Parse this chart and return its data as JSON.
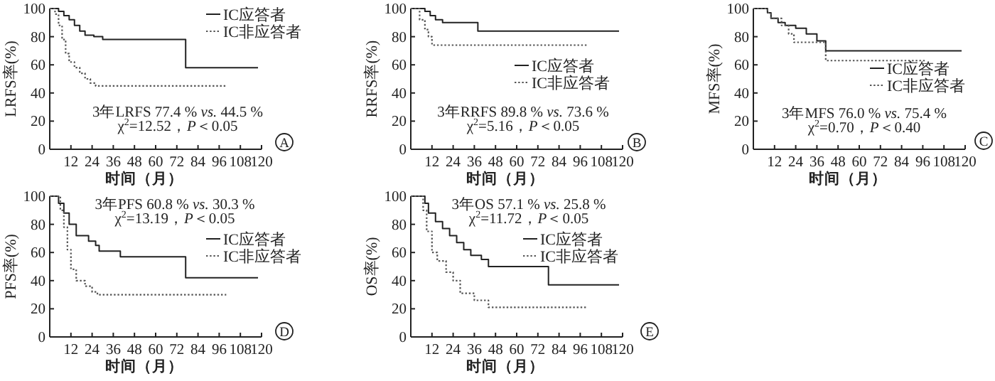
{
  "chart_data": [
    {
      "type": "step",
      "ylabel": "LRFS率(%)",
      "xlabel": "时间（月）",
      "xlim": [
        0,
        120
      ],
      "ylim": [
        0,
        100
      ],
      "xticks": [
        12,
        24,
        36,
        48,
        60,
        72,
        84,
        96,
        108,
        120
      ],
      "yticks": [
        0,
        20,
        40,
        60,
        80,
        100
      ],
      "legend": "top right",
      "annotations": [
        "3年LRFS 77.4 % *vs.* 44.5 %",
        "χ$^{2}$=12.52，*P*＜0.05",
        "A"
      ],
      "series": [
        {
          "name": "IC应答者",
          "color": "#222222",
          "line_style": "solid",
          "x": [
            0,
            5,
            8,
            11,
            14,
            17,
            20,
            25,
            30,
            77,
            118
          ],
          "values": [
            100,
            98,
            95,
            92,
            88,
            84,
            81,
            80,
            78,
            58,
            58
          ]
        },
        {
          "name": "IC非应答者",
          "color": "#555555",
          "line_style": "dotted",
          "x": [
            0,
            3,
            5,
            7,
            9,
            11,
            14,
            17,
            20,
            23,
            26,
            100
          ],
          "values": [
            100,
            96,
            88,
            78,
            68,
            62,
            58,
            54,
            50,
            47,
            45,
            45
          ]
        }
      ]
    },
    {
      "type": "step",
      "ylabel": "RRFS率(%)",
      "xlabel": "时间（月）",
      "xlim": [
        0,
        120
      ],
      "ylim": [
        0,
        100
      ],
      "xticks": [
        12,
        24,
        36,
        48,
        60,
        72,
        84,
        96,
        108,
        120
      ],
      "yticks": [
        0,
        20,
        40,
        60,
        80,
        100
      ],
      "legend": "right",
      "annotations": [
        "3年RRFS 89.8 % *vs.* 73.6 %",
        "χ$^{2}$=5.16，*P*＜0.05",
        "B"
      ],
      "series": [
        {
          "name": "IC应答者",
          "color": "#222222",
          "line_style": "solid",
          "x": [
            0,
            6,
            8,
            11,
            14,
            18,
            38,
            118
          ],
          "values": [
            100,
            100,
            98,
            95,
            92,
            90,
            84,
            84
          ]
        },
        {
          "name": "IC非应答者",
          "color": "#555555",
          "line_style": "dotted",
          "x": [
            0,
            3,
            5,
            8,
            10,
            12,
            100
          ],
          "values": [
            100,
            100,
            92,
            85,
            80,
            74,
            74
          ]
        }
      ]
    },
    {
      "type": "step",
      "ylabel": "MFS率(%)",
      "xlabel": "时间（月）",
      "xlim": [
        0,
        120
      ],
      "ylim": [
        0,
        100
      ],
      "xticks": [
        12,
        24,
        36,
        48,
        60,
        72,
        84,
        96,
        108,
        120
      ],
      "yticks": [
        0,
        20,
        40,
        60,
        80,
        100
      ],
      "legend": "right",
      "annotations": [
        "3年MFS 76.0 % *vs.* 75.4 %",
        "χ$^{2}$=0.70，*P*＜0.40",
        "C"
      ],
      "series": [
        {
          "name": "IC应答者",
          "color": "#222222",
          "line_style": "solid",
          "x": [
            0,
            6,
            8,
            10,
            14,
            18,
            24,
            30,
            36,
            41,
            118
          ],
          "values": [
            100,
            100,
            97,
            93,
            90,
            88,
            86,
            82,
            77,
            70,
            70
          ]
        },
        {
          "name": "IC非应答者",
          "color": "#555555",
          "line_style": "dotted",
          "x": [
            0,
            4,
            8,
            10,
            16,
            20,
            23,
            41,
            98
          ],
          "values": [
            100,
            100,
            97,
            93,
            88,
            82,
            76,
            63,
            63
          ]
        }
      ]
    },
    {
      "type": "step",
      "ylabel": "PFS率(%)",
      "xlabel": "时间（月）",
      "xlim": [
        0,
        120
      ],
      "ylim": [
        0,
        100
      ],
      "xticks": [
        12,
        24,
        36,
        48,
        60,
        72,
        84,
        96,
        108,
        120
      ],
      "yticks": [
        0,
        20,
        40,
        60,
        80,
        100
      ],
      "legend": "right",
      "annotations": [
        "3年PFS 60.8 % *vs.* 30.3 %",
        "χ$^{2}$=13.19，*P*＜0.05",
        "D"
      ],
      "series": [
        {
          "name": "IC应答者",
          "color": "#222222",
          "line_style": "solid",
          "x": [
            0,
            3,
            5,
            8,
            11,
            15,
            22,
            26,
            28,
            40,
            77,
            118
          ],
          "values": [
            100,
            100,
            95,
            88,
            80,
            72,
            68,
            65,
            61,
            57,
            42,
            42
          ]
        },
        {
          "name": "IC非应答者",
          "color": "#555555",
          "line_style": "dotted",
          "x": [
            0,
            3,
            6,
            8,
            10,
            12,
            15,
            20,
            24,
            27,
            100
          ],
          "values": [
            100,
            100,
            90,
            78,
            62,
            48,
            40,
            36,
            32,
            30,
            30
          ]
        }
      ]
    },
    {
      "type": "step",
      "ylabel": "OS率(%)",
      "xlabel": "时间（月）",
      "xlim": [
        0,
        120
      ],
      "ylim": [
        0,
        100
      ],
      "xticks": [
        12,
        24,
        36,
        48,
        60,
        72,
        84,
        96,
        108,
        120
      ],
      "yticks": [
        0,
        20,
        40,
        60,
        80,
        100
      ],
      "legend": "right",
      "annotations": [
        "3年OS 57.1 % *vs.* 25.8 %",
        "χ$^{2}$=11.72，*P*＜0.05",
        "E"
      ],
      "series": [
        {
          "name": "IC应答者",
          "color": "#222222",
          "line_style": "solid",
          "x": [
            0,
            6,
            8,
            10,
            14,
            18,
            22,
            26,
            30,
            34,
            40,
            44,
            78,
            118
          ],
          "values": [
            100,
            100,
            95,
            88,
            82,
            77,
            72,
            67,
            62,
            58,
            55,
            50,
            37,
            37
          ]
        },
        {
          "name": "IC非应答者",
          "color": "#555555",
          "line_style": "dotted",
          "x": [
            0,
            5,
            7,
            9,
            12,
            15,
            20,
            24,
            28,
            36,
            44,
            100
          ],
          "values": [
            100,
            100,
            90,
            75,
            60,
            54,
            46,
            40,
            31,
            26,
            21,
            21
          ]
        }
      ]
    }
  ]
}
